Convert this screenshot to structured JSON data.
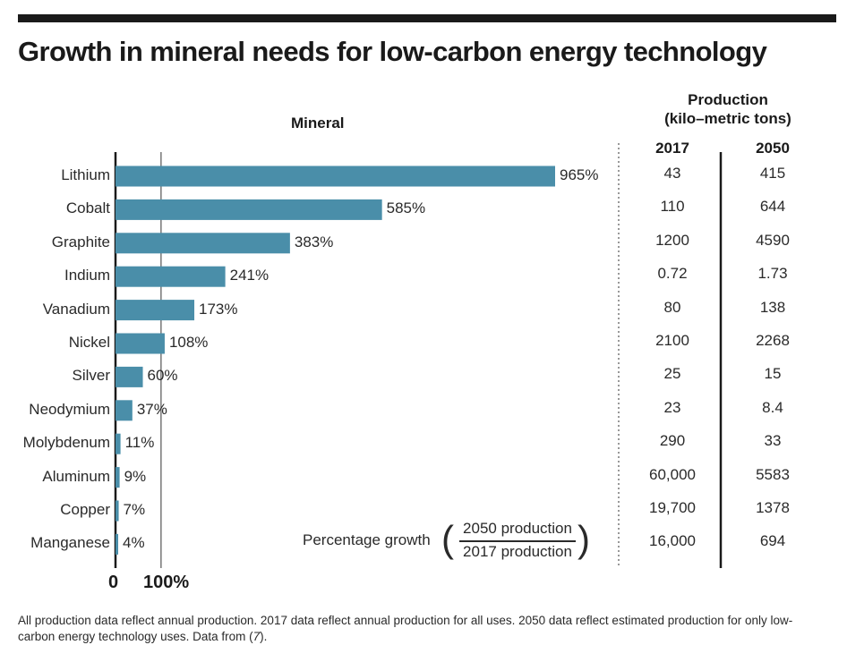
{
  "title": "Growth in mineral needs for low-carbon energy technology",
  "header": {
    "mineral": "Mineral",
    "production_line1": "Production",
    "production_line2": "(kilo–metric tons)",
    "col_2017": "2017",
    "col_2050": "2050"
  },
  "axis": {
    "tick0": "0",
    "tick100": "100%"
  },
  "formula": {
    "label": "Percentage growth",
    "open": "(",
    "numerator": "2050 production",
    "denominator": "2017 production",
    "close": ")"
  },
  "footnote": {
    "text": "All production data reflect annual production. 2017 data reflect annual production for all uses. 2050 data reflect estimated production for only low-carbon energy technology uses. Data from (",
    "ref": "7",
    "end": ")."
  },
  "chart_data": {
    "type": "bar",
    "orientation": "horizontal",
    "categories": [
      "Lithium",
      "Cobalt",
      "Graphite",
      "Indium",
      "Vanadium",
      "Nickel",
      "Silver",
      "Neodymium",
      "Molybdenum",
      "Aluminum",
      "Copper",
      "Manganese"
    ],
    "values": [
      965,
      585,
      383,
      241,
      173,
      108,
      60,
      37,
      11,
      9,
      7,
      4
    ],
    "value_labels": [
      "965%",
      "585%",
      "383%",
      "241%",
      "173%",
      "108%",
      "60%",
      "37%",
      "11%",
      "9%",
      "7%",
      "4%"
    ],
    "xlim": [
      0,
      965
    ],
    "reference_line": 100,
    "bar_color": "#4a8ea9",
    "table": {
      "columns": [
        "2017",
        "2050"
      ],
      "rows": [
        [
          "43",
          "415"
        ],
        [
          "110",
          "644"
        ],
        [
          "1200",
          "4590"
        ],
        [
          "0.72",
          "1.73"
        ],
        [
          "80",
          "138"
        ],
        [
          "2100",
          "2268"
        ],
        [
          "25",
          "15"
        ],
        [
          "23",
          "8.4"
        ],
        [
          "290",
          "33"
        ],
        [
          "60,000",
          "5583"
        ],
        [
          "19,700",
          "1378"
        ],
        [
          "16,000",
          "694"
        ]
      ]
    }
  }
}
